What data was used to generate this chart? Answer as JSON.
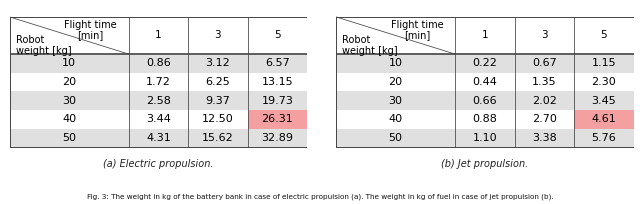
{
  "table_a_caption": "(a) Electric propulsion.",
  "table_b_caption": "(b) Jet propulsion.",
  "fig_caption": "Fig. 3: The weight in kg of the battery bank in case of electric propulsion (a). The weight in kg of fuel in case of jet propulsion (b).",
  "col_headers": [
    "1",
    "3",
    "5"
  ],
  "row_weights": [
    "10",
    "20",
    "30",
    "40",
    "50"
  ],
  "table_a_data": [
    [
      "0.86",
      "3.12",
      "6.57"
    ],
    [
      "1.72",
      "6.25",
      "13.15"
    ],
    [
      "2.58",
      "9.37",
      "19.73"
    ],
    [
      "3.44",
      "12.50",
      "26.31"
    ],
    [
      "4.31",
      "15.62",
      "32.89"
    ]
  ],
  "table_b_data": [
    [
      "0.22",
      "0.67",
      "1.15"
    ],
    [
      "0.44",
      "1.35",
      "2.30"
    ],
    [
      "0.66",
      "2.02",
      "3.45"
    ],
    [
      "0.88",
      "2.70",
      "4.61"
    ],
    [
      "1.10",
      "3.38",
      "5.76"
    ]
  ],
  "highlight_a": [
    3,
    2
  ],
  "highlight_b": [
    3,
    2
  ],
  "highlight_color": "#f4a0a0",
  "row_bg_odd": "#e0e0e0",
  "row_bg_even": "#ffffff",
  "border_color": "#555555",
  "header_flight_time": "Flight time",
  "header_min": "[min]",
  "header_robot": "Robot",
  "header_weight_kg": "weight [kg]"
}
